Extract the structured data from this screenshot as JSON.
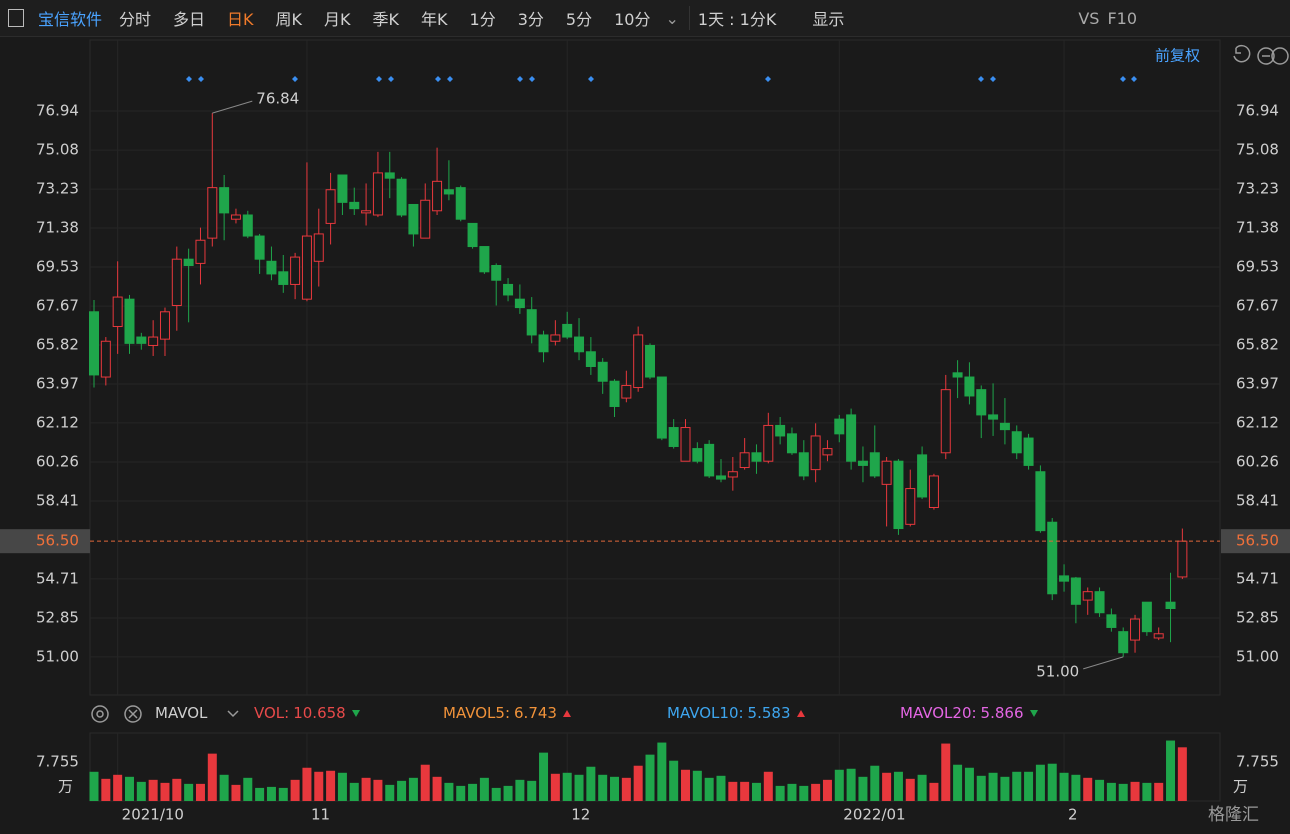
{
  "toolbar": {
    "stock": "宝信软件",
    "tabs": [
      "分时",
      "多日",
      "日K",
      "周K",
      "月K",
      "季K",
      "年K",
      "1分",
      "3分",
      "5分",
      "10分"
    ],
    "active_tab": "日K",
    "period": "1天 : 1分K",
    "display": "显示",
    "compare": "VS",
    "f10": "F10",
    "adjust": "前复权"
  },
  "chart_data": {
    "type": "candlestick",
    "categories": [
      null,
      null,
      "2021/10",
      null,
      null,
      null,
      null,
      null,
      null,
      null,
      null,
      null,
      null,
      null,
      null,
      null,
      null,
      null,
      "11",
      null,
      null,
      null,
      null,
      null,
      null,
      null,
      null,
      null,
      null,
      null,
      null,
      null,
      null,
      null,
      null,
      null,
      null,
      null,
      null,
      null,
      "12",
      null,
      null,
      null,
      null,
      null,
      null,
      null,
      null,
      null,
      null,
      null,
      null,
      null,
      null,
      null,
      null,
      null,
      null,
      null,
      null,
      null,
      null,
      "2022/01",
      null,
      null,
      null,
      null,
      null,
      null,
      null,
      null,
      null,
      null,
      null,
      null,
      null,
      null,
      null,
      null,
      null,
      null,
      "2",
      null,
      null,
      null,
      null,
      null,
      null,
      null,
      null,
      null,
      null
    ],
    "open": [
      67.4,
      64.3,
      66.7,
      68.0,
      66.2,
      65.8,
      66.1,
      67.7,
      69.9,
      69.7,
      70.9,
      73.3,
      71.8,
      72.0,
      71.0,
      69.8,
      69.3,
      68.7,
      68.0,
      69.8,
      71.6,
      73.9,
      72.6,
      72.1,
      72.0,
      74.0,
      73.7,
      72.5,
      70.9,
      72.2,
      73.2,
      73.3,
      71.6,
      70.5,
      69.6,
      68.7,
      68.0,
      67.5,
      66.3,
      66.0,
      66.8,
      66.2,
      65.5,
      65.0,
      64.1,
      63.3,
      63.8,
      65.8,
      64.3,
      61.9,
      60.3,
      60.9,
      61.1,
      59.6,
      59.55,
      60.0,
      60.7,
      60.3,
      62.0,
      61.6,
      60.7,
      59.9,
      60.6,
      62.3,
      62.5,
      60.3,
      60.7,
      59.2,
      60.3,
      57.3,
      60.6,
      58.1,
      60.7,
      64.5,
      64.3,
      63.7,
      62.5,
      62.1,
      61.7,
      61.4,
      59.8,
      57.4,
      54.85,
      54.75,
      53.7,
      54.1,
      53.0,
      52.2,
      51.8,
      53.6,
      51.9,
      53.6,
      54.8
    ],
    "high": [
      67.96,
      66.2,
      69.8,
      68.2,
      66.4,
      67.0,
      67.6,
      70.5,
      70.4,
      71.4,
      76.84,
      73.9,
      72.3,
      72.2,
      71.1,
      70.5,
      70.1,
      70.2,
      74.5,
      72.3,
      74.0,
      73.9,
      73.3,
      73.5,
      75.0,
      75.0,
      73.8,
      72.5,
      73.5,
      75.2,
      74.6,
      73.4,
      71.6,
      70.5,
      69.7,
      69.0,
      68.7,
      68.1,
      66.5,
      67.0,
      67.4,
      67.1,
      66.2,
      65.2,
      64.2,
      64.6,
      66.7,
      65.9,
      64.3,
      62.3,
      62.3,
      61.2,
      61.3,
      60.4,
      60.5,
      61.4,
      61.1,
      62.6,
      62.4,
      61.9,
      61.3,
      62.1,
      61.3,
      62.5,
      62.8,
      61.0,
      62.0,
      60.5,
      60.4,
      59.9,
      61.0,
      59.7,
      64.4,
      65.1,
      65.0,
      63.9,
      64.0,
      63.3,
      62.0,
      61.6,
      60.1,
      57.6,
      55.4,
      54.8,
      54.3,
      54.3,
      53.3,
      52.4,
      53.0,
      53.6,
      52.4,
      55.0,
      57.1
    ],
    "low": [
      63.8,
      63.9,
      65.4,
      65.4,
      65.6,
      65.3,
      65.3,
      66.5,
      66.9,
      68.7,
      70.5,
      70.8,
      71.6,
      70.9,
      69.2,
      68.9,
      68.3,
      68.0,
      67.9,
      68.6,
      70.6,
      72.0,
      72.0,
      71.5,
      71.9,
      72.8,
      71.9,
      70.5,
      70.9,
      72.0,
      72.7,
      71.7,
      70.4,
      69.2,
      67.7,
      67.9,
      67.3,
      65.9,
      65.0,
      65.8,
      66.1,
      65.1,
      64.4,
      63.5,
      62.4,
      63.1,
      63.6,
      64.2,
      61.3,
      60.9,
      60.3,
      60.2,
      59.5,
      59.3,
      58.9,
      59.9,
      59.7,
      60.2,
      61.1,
      60.6,
      59.4,
      59.3,
      60.3,
      61.2,
      59.9,
      59.3,
      59.5,
      57.2,
      56.8,
      57.2,
      58.5,
      58.0,
      60.4,
      63.3,
      63.0,
      61.4,
      61.5,
      61.1,
      60.4,
      59.9,
      56.9,
      53.7,
      54.1,
      52.6,
      53.0,
      52.9,
      52.2,
      51.0,
      51.2,
      52.0,
      51.8,
      51.7,
      54.7
    ],
    "close": [
      64.4,
      66.0,
      68.1,
      65.9,
      65.9,
      66.2,
      67.4,
      69.9,
      69.6,
      70.8,
      73.3,
      72.1,
      72.0,
      71.0,
      69.9,
      69.2,
      68.7,
      70.0,
      71.0,
      71.1,
      73.2,
      72.6,
      72.3,
      72.2,
      74.0,
      73.75,
      72.0,
      71.1,
      72.7,
      73.6,
      73.0,
      71.8,
      70.5,
      69.3,
      68.9,
      68.2,
      67.6,
      66.3,
      65.5,
      66.3,
      66.2,
      65.5,
      64.8,
      64.1,
      62.9,
      63.9,
      66.3,
      64.3,
      61.4,
      61.0,
      61.9,
      60.3,
      59.6,
      59.45,
      59.8,
      60.7,
      60.3,
      62.0,
      61.5,
      60.7,
      59.6,
      61.5,
      60.9,
      61.6,
      60.3,
      60.1,
      59.6,
      60.3,
      57.1,
      59.0,
      58.6,
      59.6,
      63.7,
      64.3,
      63.4,
      62.5,
      62.3,
      61.8,
      60.7,
      60.1,
      57.0,
      54.0,
      54.6,
      53.5,
      54.1,
      53.1,
      52.4,
      51.2,
      52.8,
      52.2,
      52.1,
      53.3,
      56.5
    ],
    "volume": [
      5.8,
      4.4,
      5.2,
      4.8,
      3.8,
      4.2,
      3.6,
      4.4,
      3.4,
      3.4,
      9.4,
      5.2,
      3.2,
      4.6,
      2.6,
      2.8,
      2.6,
      4.2,
      6.6,
      5.8,
      6.0,
      5.6,
      3.6,
      4.6,
      4.2,
      3.2,
      4.0,
      4.6,
      7.2,
      4.8,
      3.6,
      3.0,
      3.4,
      4.6,
      2.6,
      3.0,
      4.2,
      4.0,
      9.6,
      5.4,
      5.6,
      5.2,
      6.8,
      5.2,
      4.8,
      4.6,
      7.0,
      9.2,
      11.6,
      8.0,
      6.2,
      6.0,
      4.6,
      5.0,
      3.8,
      3.8,
      3.6,
      5.8,
      3.0,
      3.4,
      3.0,
      3.4,
      4.2,
      6.2,
      6.4,
      4.8,
      7.0,
      5.6,
      5.8,
      4.4,
      5.2,
      3.6,
      11.4,
      7.2,
      6.6,
      5.0,
      5.6,
      4.8,
      5.8,
      5.8,
      7.2,
      7.4,
      5.6,
      5.2,
      4.6,
      4.2,
      3.6,
      3.4,
      3.8,
      3.6,
      3.6,
      12.0,
      10.658
    ],
    "up_color": "#e8383d",
    "down_color": "#1fa64b",
    "ylim": [
      49.19,
      78.89
    ],
    "yticks": [
      {
        "value": 76.94,
        "label": "76.94"
      },
      75.08,
      73.23,
      71.38,
      69.53,
      67.67,
      65.82,
      63.97,
      62.12,
      60.26,
      58.41,
      54.71,
      52.85,
      {
        "value": 51,
        "label": "51.00"
      }
    ],
    "last_price": {
      "value": 56.5,
      "label": "56.50"
    },
    "extremes": {
      "max": {
        "value": 76.84,
        "label": "76.84"
      },
      "min": {
        "value": 51,
        "label": "51.00"
      }
    },
    "volume_ylim": [
      0,
      13.1
    ],
    "volume_yticks": [
      7.755
    ],
    "volume_unit": "万",
    "volume_indicator": {
      "name": "MAVOL",
      "items": [
        {
          "name": "VOL:",
          "value": 10.658,
          "color": "#e84a4a"
        },
        {
          "name": "MAVOL5:",
          "value": 6.743,
          "color": "#f0923a"
        },
        {
          "name": "MAVOL10:",
          "value": 5.583,
          "color": "#3ea6ef"
        },
        {
          "name": "MAVOL20:",
          "value": 5.866,
          "color": "#e466e4"
        }
      ]
    },
    "grid": true
  },
  "watermark": "格隆汇"
}
